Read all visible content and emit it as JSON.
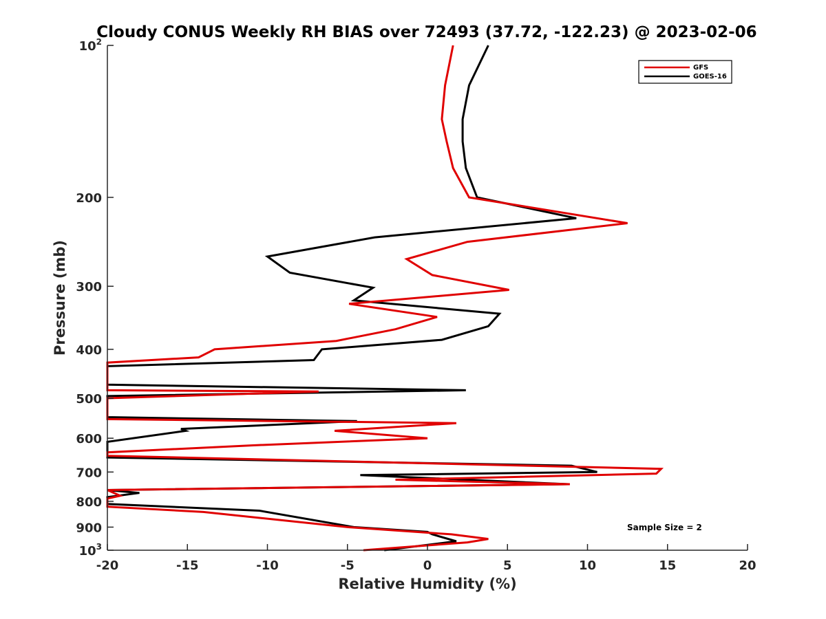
{
  "chart_data": {
    "type": "line",
    "title": "Cloudy CONUS Weekly RH BIAS over 72493 (37.72, -122.23) @ 2023-02-06",
    "xlabel": "Relative Humidity (%)",
    "ylabel": "Pressure (mb)",
    "xlim": [
      -20,
      20
    ],
    "ylim": [
      100,
      1000
    ],
    "y_scale": "log",
    "y_reversed": true,
    "x_ticks": [
      -20,
      -15,
      -10,
      -5,
      0,
      5,
      10,
      15,
      20
    ],
    "x_tick_labels": [
      "-20",
      "-15",
      "-10",
      "-5",
      "0",
      "5",
      "10",
      "15",
      "20"
    ],
    "y_ticks": [
      {
        "value": 100,
        "base": "10",
        "exp": "2"
      },
      {
        "value": 200,
        "base": "200",
        "exp": ""
      },
      {
        "value": 300,
        "base": "300",
        "exp": ""
      },
      {
        "value": 400,
        "base": "400",
        "exp": ""
      },
      {
        "value": 500,
        "base": "500",
        "exp": ""
      },
      {
        "value": 600,
        "base": "600",
        "exp": ""
      },
      {
        "value": 700,
        "base": "700",
        "exp": ""
      },
      {
        "value": 800,
        "base": "800",
        "exp": ""
      },
      {
        "value": 900,
        "base": "900",
        "exp": ""
      },
      {
        "value": 1000,
        "base": "10",
        "exp": "3"
      }
    ],
    "grid": false,
    "legend_position": "top-right",
    "annotation": "Sample Size = 2",
    "series": [
      {
        "name": "GFS",
        "color": "#e00000",
        "x": [
          1.6,
          1.1,
          0.9,
          1.2,
          1.6,
          2.6,
          12.5,
          2.5,
          -1.3,
          0.3,
          5.1,
          -4.9,
          0.6,
          -2.0,
          -5.7,
          -13.3,
          -14.3,
          -20.0,
          -20.0,
          -20.0,
          -6.8,
          -20.0,
          -20.0,
          1.8,
          -5.8,
          0.0,
          -11.0,
          -20.0,
          -20.0,
          14.6,
          14.3,
          -2.0,
          8.9,
          -20.0,
          -19.2,
          -20.0,
          -20.0,
          -14.0,
          -5.0,
          1.5,
          3.8,
          2.5,
          -4.0
        ],
        "y": [
          100,
          120,
          140,
          155,
          175,
          200,
          225,
          245,
          265,
          285,
          305,
          325,
          345,
          365,
          385,
          400,
          415,
          425,
          470,
          482,
          485,
          500,
          550,
          560,
          580,
          600,
          620,
          640,
          650,
          690,
          705,
          725,
          740,
          760,
          780,
          790,
          820,
          840,
          900,
          930,
          950,
          965,
          1000
        ]
      },
      {
        "name": "GOES-16",
        "color": "#000000",
        "x": [
          3.8,
          2.6,
          2.2,
          2.2,
          2.4,
          3.1,
          9.3,
          -3.3,
          -10.0,
          -8.6,
          -3.4,
          -4.6,
          4.5,
          3.8,
          0.9,
          -6.6,
          -7.1,
          -20.0,
          -20.0,
          -20.0,
          2.4,
          -20.0,
          -20.0,
          -4.4,
          -15.4,
          -15.1,
          -20.0,
          -20.0,
          -20.0,
          9.0,
          10.6,
          -4.2,
          8.8,
          -20.0,
          -18.0,
          -20.0,
          -20.0,
          -10.5,
          -4.6,
          0.0,
          0.3,
          1.8,
          -2.7
        ],
        "y": [
          100,
          120,
          140,
          155,
          175,
          200,
          220,
          240,
          262,
          282,
          302,
          320,
          340,
          360,
          383,
          400,
          420,
          432,
          460,
          470,
          482,
          495,
          545,
          555,
          575,
          580,
          610,
          640,
          655,
          680,
          700,
          710,
          740,
          760,
          770,
          785,
          810,
          835,
          900,
          920,
          930,
          960,
          1000
        ]
      }
    ]
  }
}
